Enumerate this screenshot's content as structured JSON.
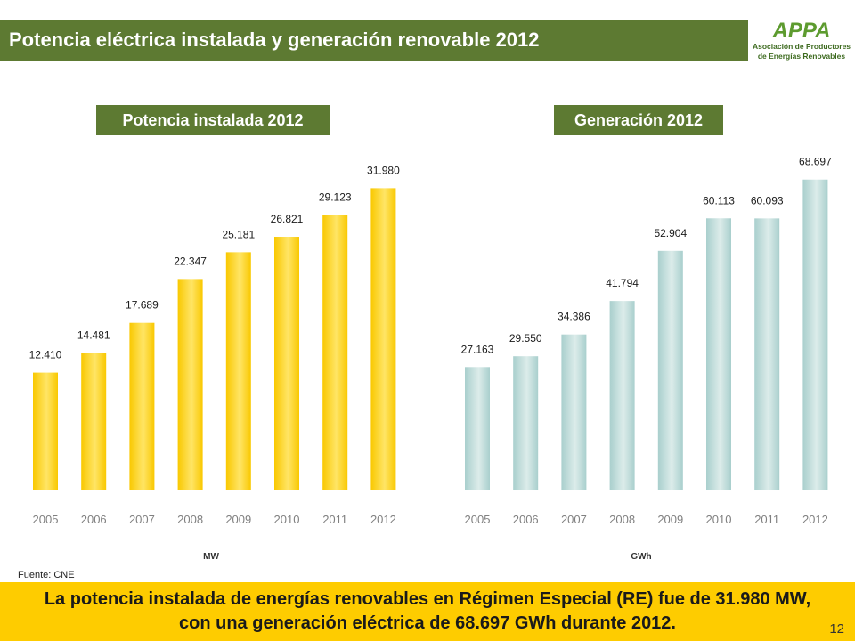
{
  "title": "Potencia eléctrica instalada y generación renovable 2012",
  "logo": {
    "mark": "APPA",
    "line1": "Asociación de Productores",
    "line2": "de Energías Renovables"
  },
  "chart_data": [
    {
      "type": "bar",
      "title": "Potencia instalada 2012",
      "unit": "MW",
      "categories": [
        "2005",
        "2006",
        "2007",
        "2008",
        "2009",
        "2010",
        "2011",
        "2012"
      ],
      "values": [
        12410,
        14481,
        17689,
        22347,
        25181,
        26821,
        29123,
        31980
      ],
      "value_labels": [
        "12.410",
        "14.481",
        "17.689",
        "22.347",
        "25.181",
        "26.821",
        "29.123",
        "31.980"
      ],
      "ylim": [
        0,
        34000
      ],
      "grid": false,
      "color": "#f9c800"
    },
    {
      "type": "bar",
      "title": "Generación 2012",
      "unit": "GWh",
      "categories": [
        "2005",
        "2006",
        "2007",
        "2008",
        "2009",
        "2010",
        "2011",
        "2012"
      ],
      "values": [
        27163,
        29550,
        34386,
        41794,
        52904,
        60113,
        60093,
        68697
      ],
      "value_labels": [
        "27.163",
        "29.550",
        "34.386",
        "41.794",
        "52.904",
        "60.113",
        "60.093",
        "68.697"
      ],
      "ylim": [
        0,
        72000
      ],
      "grid": false,
      "color": "#a9cfcd"
    }
  ],
  "source": "Fuente: CNE",
  "summary": "La potencia instalada de energías renovables en Régimen Especial (RE) fue de 31.980 MW, con una generación eléctrica de 68.697 GWh durante 2012.",
  "page_number": "12"
}
